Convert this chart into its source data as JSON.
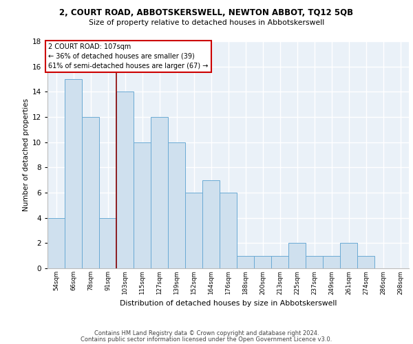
{
  "title1": "2, COURT ROAD, ABBOTSKERSWELL, NEWTON ABBOT, TQ12 5QB",
  "title2": "Size of property relative to detached houses in Abbotskerswell",
  "xlabel": "Distribution of detached houses by size in Abbotskerswell",
  "ylabel": "Number of detached properties",
  "categories": [
    "54sqm",
    "66sqm",
    "78sqm",
    "91sqm",
    "103sqm",
    "115sqm",
    "127sqm",
    "139sqm",
    "152sqm",
    "164sqm",
    "176sqm",
    "188sqm",
    "200sqm",
    "213sqm",
    "225sqm",
    "237sqm",
    "249sqm",
    "261sqm",
    "274sqm",
    "286sqm",
    "298sqm"
  ],
  "values": [
    4,
    15,
    12,
    4,
    14,
    10,
    12,
    10,
    6,
    7,
    6,
    1,
    1,
    1,
    2,
    1,
    1,
    2,
    1,
    0,
    0
  ],
  "bar_color": "#cfe0ee",
  "bar_edge_color": "#6aaad4",
  "red_line_x": 3.5,
  "annotation_box_text": "2 COURT ROAD: 107sqm\n← 36% of detached houses are smaller (39)\n61% of semi-detached houses are larger (67) →",
  "ylim": [
    0,
    18
  ],
  "yticks": [
    0,
    2,
    4,
    6,
    8,
    10,
    12,
    14,
    16,
    18
  ],
  "footer1": "Contains HM Land Registry data © Crown copyright and database right 2024.",
  "footer2": "Contains public sector information licensed under the Open Government Licence v3.0.",
  "bg_color": "#eaf1f8"
}
